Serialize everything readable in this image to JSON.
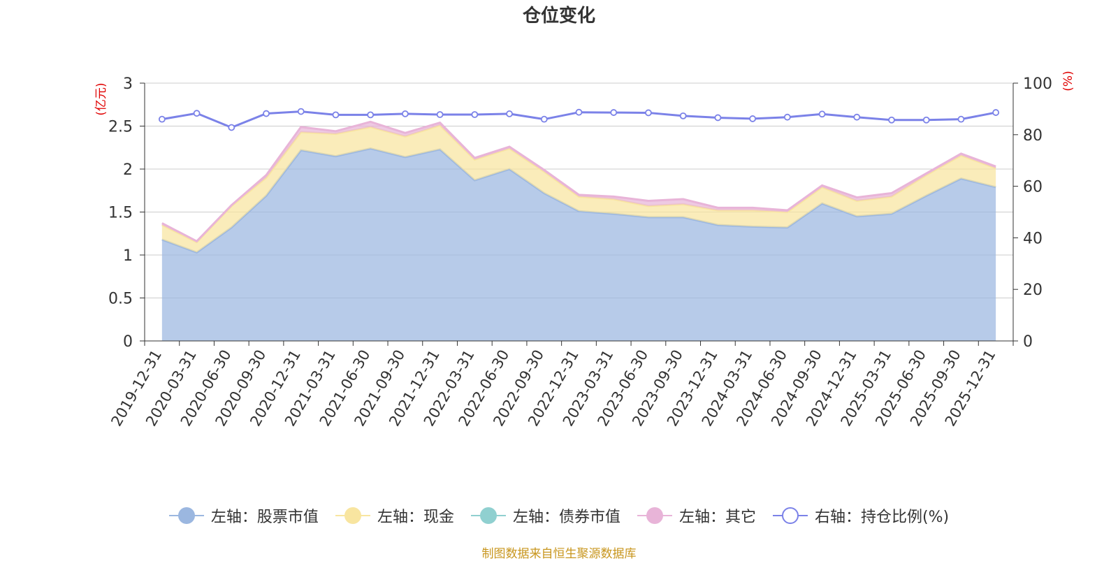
{
  "title": "仓位变化",
  "source_note": "制图数据来自恒生聚源数据库",
  "chart_data": {
    "type": "area",
    "title": "仓位变化",
    "x": [
      "2019-12-31",
      "2020-03-31",
      "2020-06-30",
      "2020-09-30",
      "2020-12-31",
      "2021-03-31",
      "2021-06-30",
      "2021-09-30",
      "2021-12-31",
      "2022-03-31",
      "2022-06-30",
      "2022-09-30",
      "2022-12-31",
      "2023-03-31",
      "2023-06-30",
      "2023-09-30",
      "2023-12-31",
      "2024-03-31",
      "2024-06-30",
      "2024-09-30",
      "2024-12-31",
      "2025-03-31",
      "2025-06-30",
      "2025-09-30",
      "2025-12-31"
    ],
    "left_axis": {
      "unit": "(亿元)",
      "ylim": [
        0,
        3
      ],
      "ticks": [
        "0",
        "0.5",
        "1",
        "1.5",
        "2",
        "2.5",
        "3"
      ]
    },
    "right_axis": {
      "unit": "(%)",
      "ylim": [
        0,
        100
      ],
      "ticks": [
        "0",
        "20",
        "40",
        "60",
        "80",
        "100"
      ]
    },
    "series": [
      {
        "name": "左轴：股票市值",
        "axis": "left",
        "stack": true,
        "color": "#9bb7e0",
        "values": [
          1.18,
          1.03,
          1.32,
          1.69,
          2.22,
          2.15,
          2.24,
          2.14,
          2.23,
          1.87,
          2.0,
          1.72,
          1.51,
          1.48,
          1.44,
          1.44,
          1.35,
          1.33,
          1.32,
          1.6,
          1.45,
          1.48,
          1.69,
          1.89,
          1.79
        ]
      },
      {
        "name": "左轴：现金",
        "axis": "left",
        "stack": true,
        "color": "#f8e5a0",
        "values": [
          0.17,
          0.12,
          0.25,
          0.21,
          0.21,
          0.26,
          0.25,
          0.24,
          0.28,
          0.24,
          0.24,
          0.25,
          0.17,
          0.17,
          0.13,
          0.15,
          0.17,
          0.19,
          0.18,
          0.19,
          0.18,
          0.2,
          0.24,
          0.27,
          0.22
        ]
      },
      {
        "name": "左轴：债券市值",
        "axis": "left",
        "stack": true,
        "color": "#90d0d0",
        "values": [
          0,
          0,
          0,
          0,
          0,
          0,
          0,
          0,
          0,
          0,
          0,
          0,
          0,
          0,
          0,
          0,
          0,
          0,
          0,
          0,
          0,
          0,
          0,
          0,
          0
        ]
      },
      {
        "name": "左轴：其它",
        "axis": "left",
        "stack": true,
        "color": "#e8b4d8",
        "values": [
          0.02,
          0.01,
          0.01,
          0.03,
          0.06,
          0.03,
          0.06,
          0.04,
          0.03,
          0.02,
          0.02,
          0.02,
          0.02,
          0.03,
          0.06,
          0.06,
          0.03,
          0.03,
          0.02,
          0.02,
          0.04,
          0.04,
          0.02,
          0.02,
          0.02
        ]
      },
      {
        "name": "右轴：持仓比例(%)",
        "axis": "right",
        "stack": false,
        "color": "#7b82e8",
        "values": [
          86.0,
          88.3,
          82.8,
          88.2,
          89.0,
          87.7,
          87.7,
          88.1,
          87.8,
          87.8,
          88.1,
          86.0,
          88.7,
          88.6,
          88.5,
          87.3,
          86.6,
          86.2,
          86.8,
          88.0,
          86.8,
          85.7,
          85.7,
          86.0,
          88.6
        ]
      }
    ],
    "grid": true,
    "legend_position": "bottom"
  }
}
